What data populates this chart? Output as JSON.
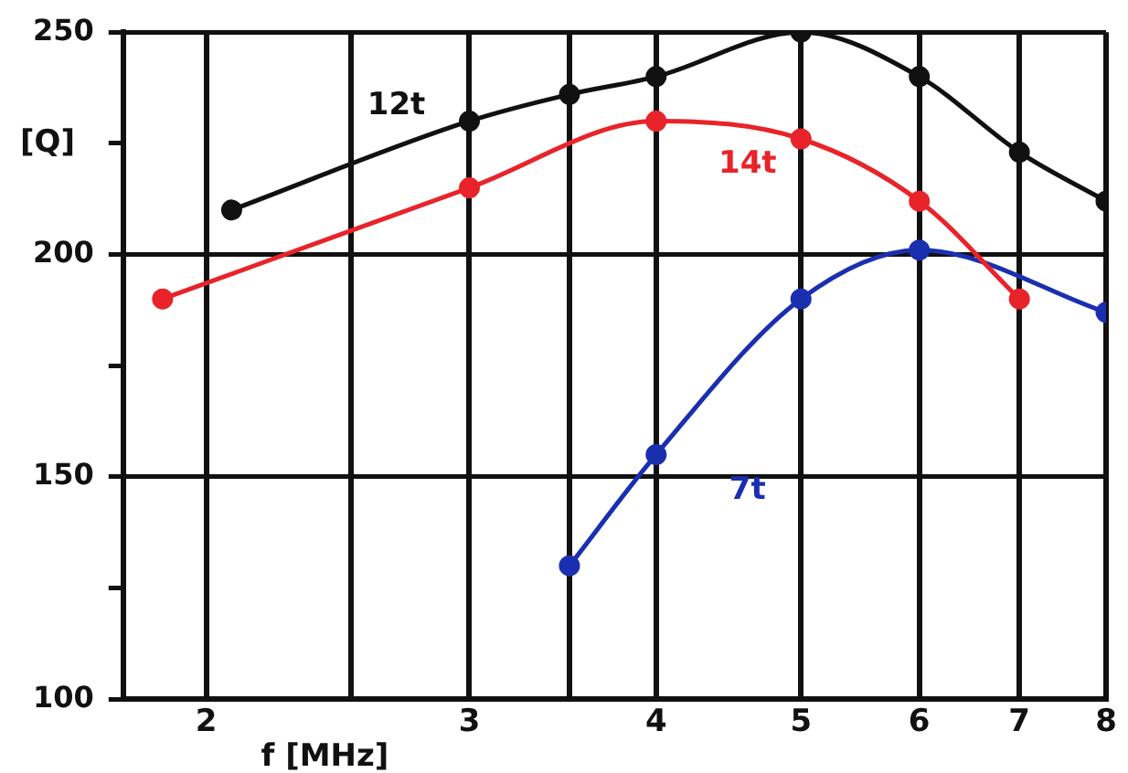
{
  "chart_data": {
    "type": "line",
    "xlabel": "f [MHz]",
    "ylabel": "[Q]",
    "log": "x",
    "xlim": [
      1.76,
      8
    ],
    "ylim": [
      100,
      250
    ],
    "xticks": [
      2,
      {
        "value": 2.5,
        "label": null
      },
      3,
      {
        "value": 3.5,
        "label": null
      },
      4,
      5,
      6,
      7,
      8
    ],
    "yticks": [
      100,
      {
        "value": 125,
        "label": null
      },
      150,
      {
        "value": 175,
        "label": null
      },
      200,
      {
        "value": 225,
        "label": null
      },
      250
    ],
    "grid": true,
    "legend": false,
    "marker": "circle",
    "line_style": "solid",
    "series": [
      {
        "name": "12t",
        "color": "#111111",
        "x": [
          2.08,
          3,
          3.5,
          4,
          5,
          6,
          7,
          8
        ],
        "values": [
          210,
          230,
          236,
          240,
          250,
          240,
          223,
          212
        ]
      },
      {
        "name": "14t",
        "color": "#e8232a",
        "x": [
          1.87,
          3,
          4,
          5,
          6,
          7
        ],
        "values": [
          190,
          215,
          230,
          226,
          212,
          190
        ]
      },
      {
        "name": "7t",
        "color": "#1a2fb0",
        "x": [
          3.5,
          4,
          5,
          6,
          8
        ],
        "values": [
          130,
          155,
          190,
          201,
          187
        ]
      }
    ]
  }
}
